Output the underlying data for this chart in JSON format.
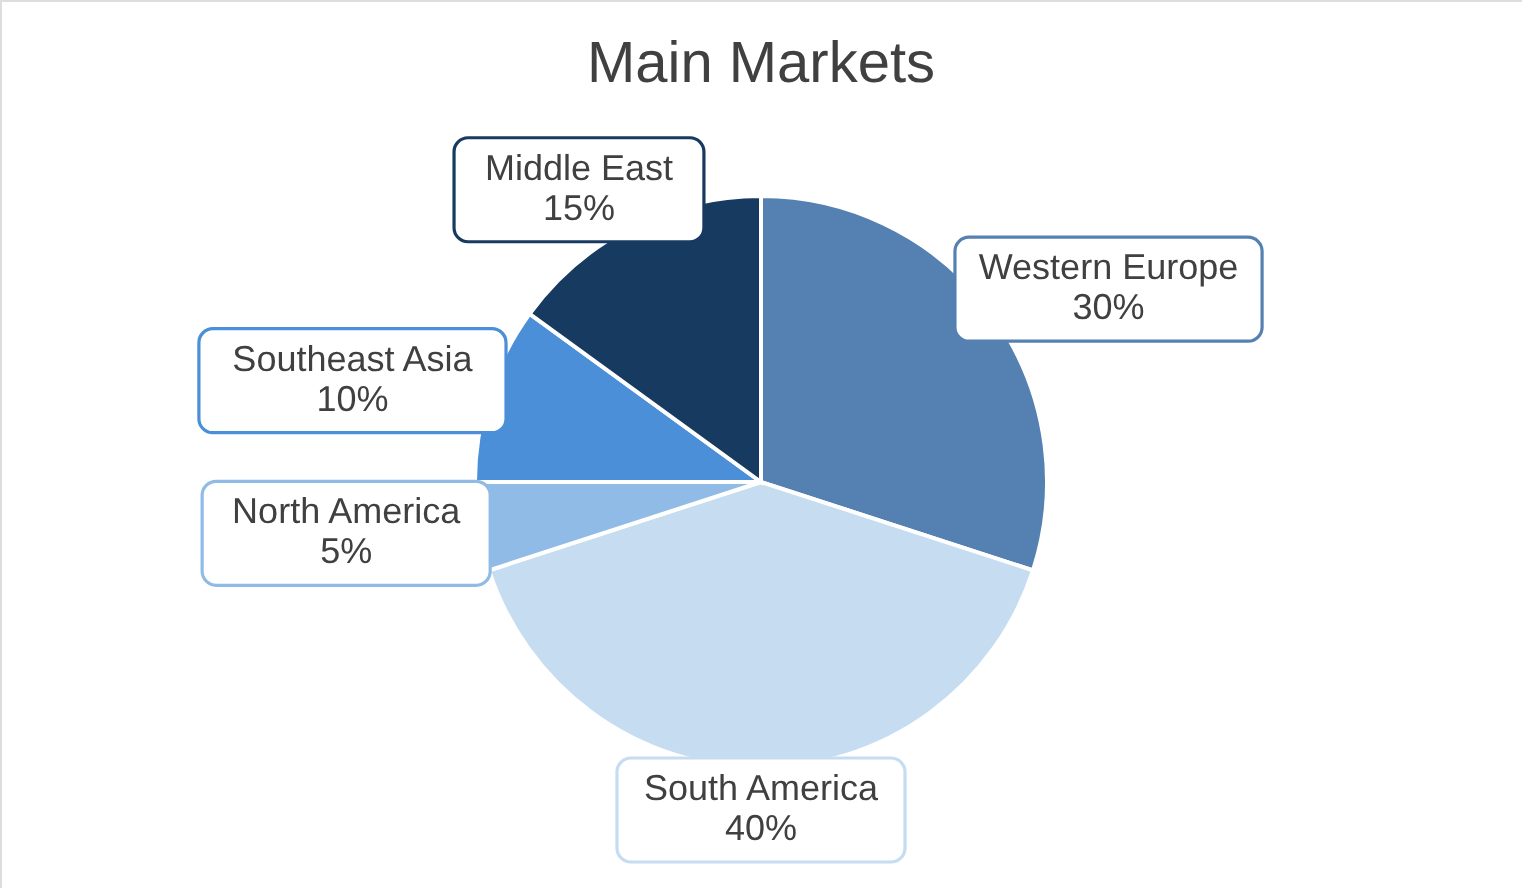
{
  "chart_data": {
    "type": "pie",
    "title": "Main Markets",
    "categories": [
      "Western Europe",
      "South America",
      "North America",
      "Southeast Asia",
      "Middle East"
    ],
    "values": [
      30,
      40,
      5,
      10,
      15
    ],
    "value_labels": [
      "30%",
      "40%",
      "5%",
      "10%",
      "15%"
    ],
    "colors": [
      "#5580b2",
      "#c5dcf1",
      "#8fbbe6",
      "#4a8fd8",
      "#173a60"
    ]
  }
}
